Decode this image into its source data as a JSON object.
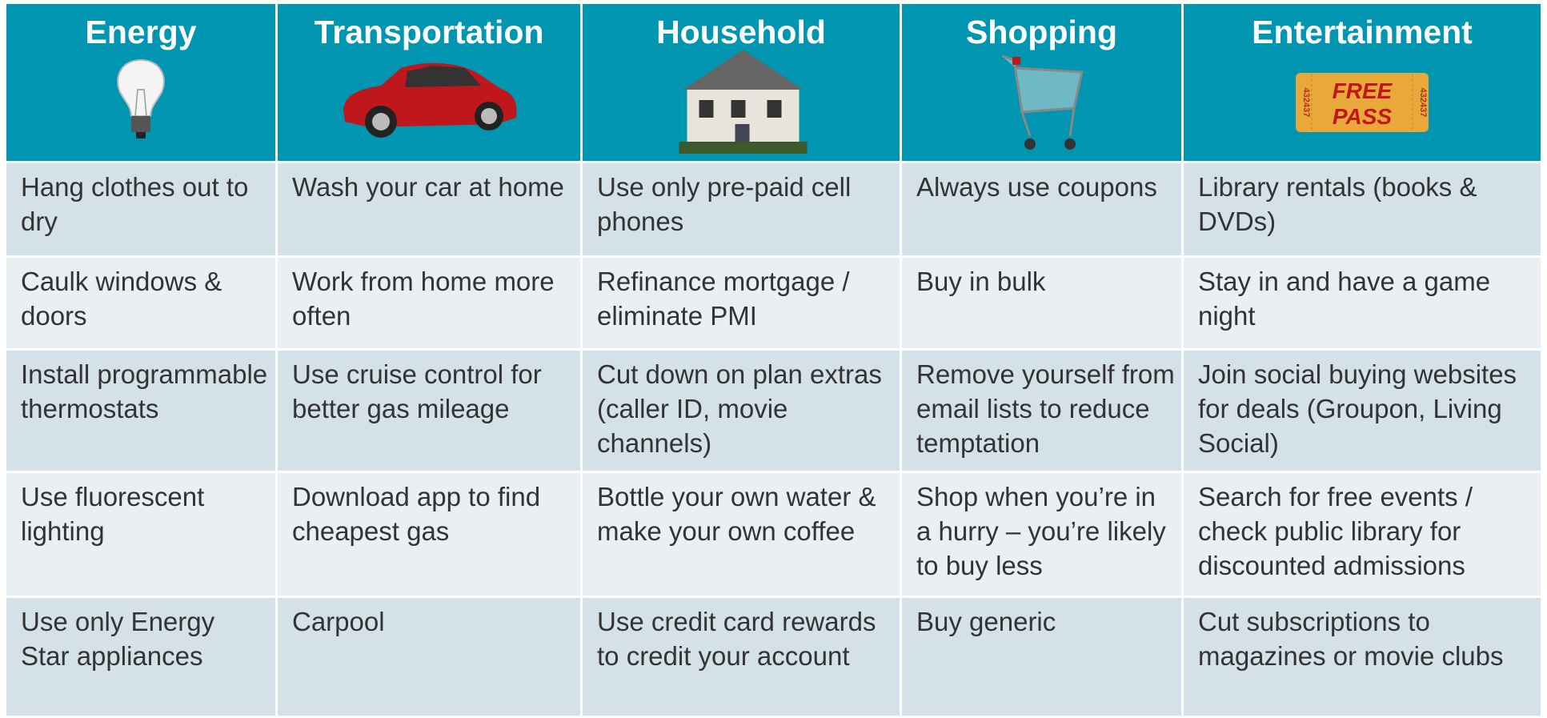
{
  "table": {
    "header": [
      "Energy",
      "Transportation",
      "Household",
      "Shopping",
      "Entertainment"
    ],
    "rows": [
      [
        "Hang clothes out to dry",
        "Wash your car at home",
        "Use only pre-paid cell phones",
        "Always use coupons",
        "Library rentals (books & DVDs)"
      ],
      [
        "Caulk windows & doors",
        "Work from home more often",
        "Refinance mortgage / eliminate PMI",
        "Buy in bulk",
        "Stay in and have a game night"
      ],
      [
        "Install programmable thermostats",
        "Use cruise control for better gas mileage",
        "Cut down on plan extras (caller ID, movie channels)",
        "Remove yourself from email lists to reduce temptation",
        "Join social buying websites for deals (Groupon, Living Social)"
      ],
      [
        "Use fluorescent lighting",
        "Download app to find cheapest gas",
        "Bottle your own water & make your own coffee",
        "Shop when you’re in a hurry – you’re likely to buy less",
        "Search for free events / check public library for discounted admissions"
      ],
      [
        "Use only Energy Star appliances",
        "Carpool",
        "Use credit card rewards to credit your account",
        "Buy generic",
        "Cut subscriptions to magazines or movie clubs"
      ]
    ]
  },
  "ticket": {
    "line1": "FREE",
    "line2": "PASS",
    "serial": "432437"
  }
}
